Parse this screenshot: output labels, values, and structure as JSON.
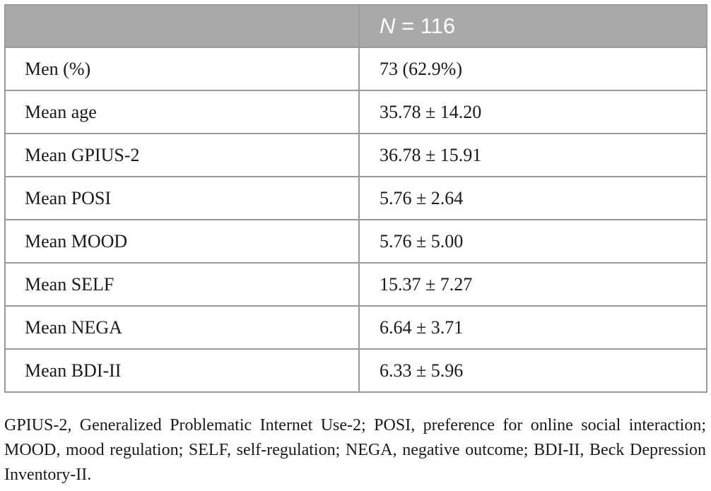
{
  "table": {
    "header": {
      "col1": "",
      "n_symbol": "N",
      "n_rest": " = 116"
    },
    "rows": [
      {
        "label": "Men (%)",
        "value": "73 (62.9%)"
      },
      {
        "label": "Mean age",
        "value": "35.78 ± 14.20"
      },
      {
        "label": "Mean GPIUS-2",
        "value": "36.78 ± 15.91"
      },
      {
        "label": "Mean POSI",
        "value": "5.76 ± 2.64"
      },
      {
        "label": "Mean MOOD",
        "value": "5.76 ± 5.00"
      },
      {
        "label": "Mean SELF",
        "value": "15.37 ± 7.27"
      },
      {
        "label": "Mean NEGA",
        "value": "6.64 ± 3.71"
      },
      {
        "label": "Mean BDI-II",
        "value": "6.33 ± 5.96"
      }
    ]
  },
  "footnote": "GPIUS-2, Generalized Problematic Internet Use-2; POSI, preference for online social interaction; MOOD, mood regulation; SELF, self-regulation; NEGA, negative outcome; BDI-II, Beck Depression Inventory-II."
}
